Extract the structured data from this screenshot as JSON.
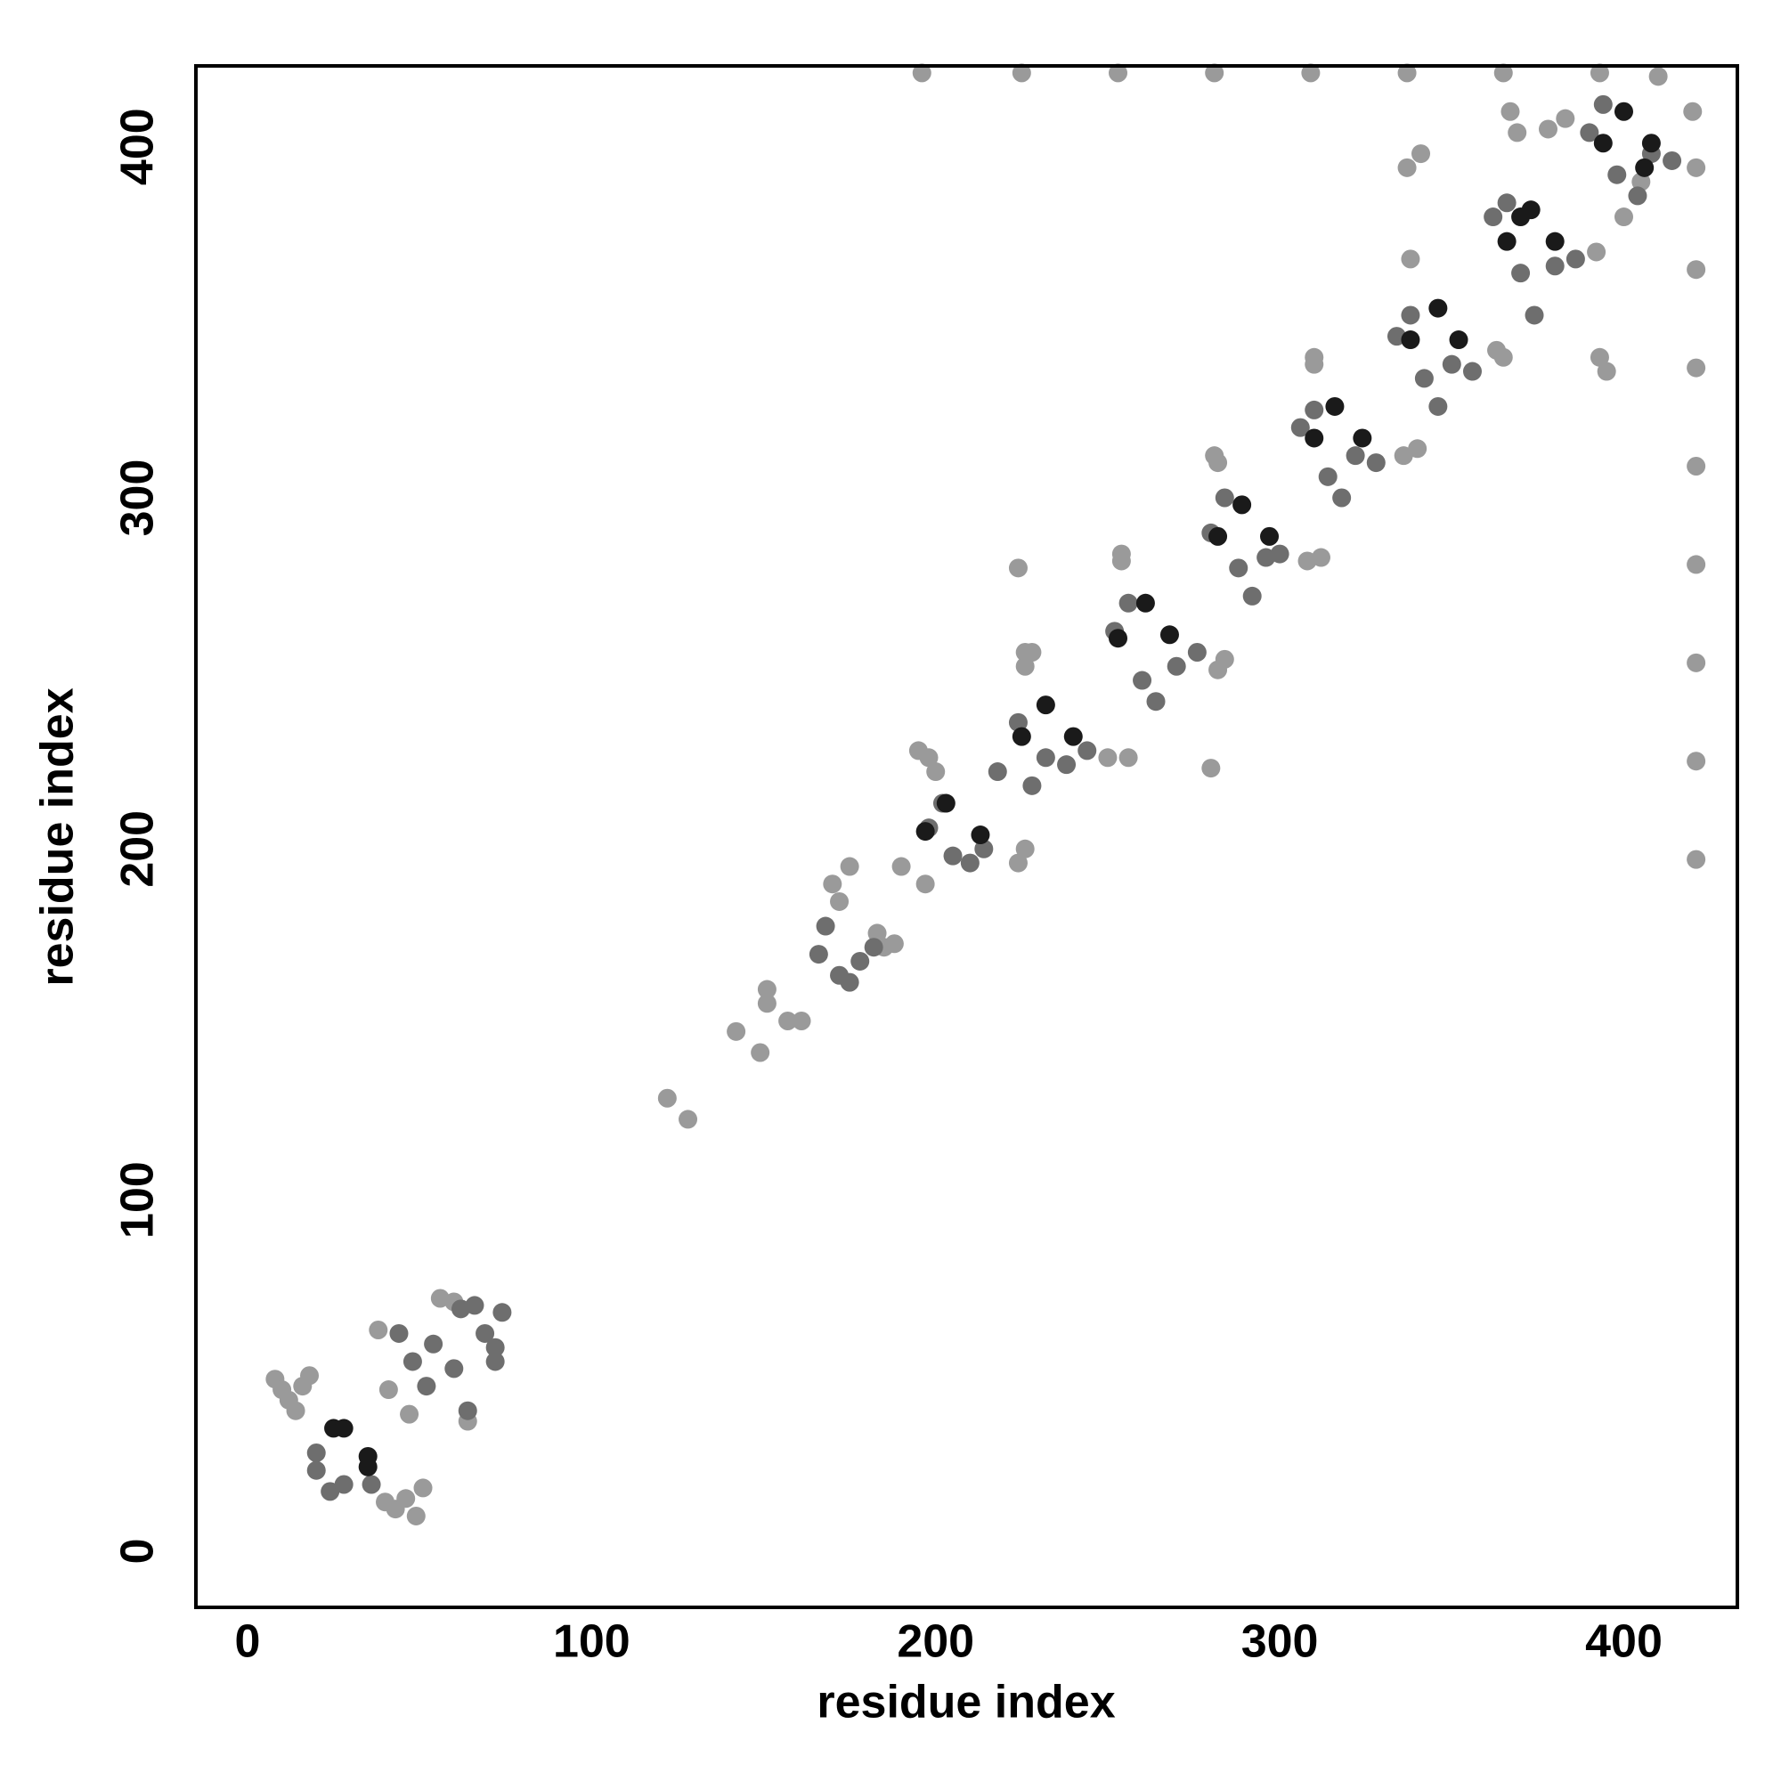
{
  "chart_data": {
    "type": "scatter",
    "x_label": "residue index",
    "y_label": "residue index",
    "xlim": [
      -15,
      433
    ],
    "ylim": [
      -16,
      423
    ],
    "xticks": [
      0,
      100,
      200,
      300,
      400
    ],
    "yticks": [
      0,
      100,
      200,
      300,
      400
    ],
    "grid": false,
    "series": [
      {
        "color": "#9a9a9a",
        "x": [
          196,
          225,
          253,
          281,
          309,
          337,
          365,
          393,
          410,
          421,
          421,
          421,
          421,
          421,
          421,
          421,
          421,
          420,
          122,
          128,
          142,
          149,
          151,
          151,
          157,
          161,
          8,
          10,
          12,
          14,
          16,
          18,
          40,
          43,
          46,
          49,
          51,
          38,
          56,
          60,
          64,
          41,
          47,
          190,
          195,
          197,
          200,
          224,
          226,
          224,
          226,
          228,
          250,
          254,
          256,
          280,
          281,
          282,
          284,
          308,
          310,
          312,
          336,
          338,
          340,
          365,
          363,
          337,
          341,
          393,
          395,
          367,
          369,
          310,
          282,
          254,
          226,
          198,
          170,
          175,
          172,
          188,
          183,
          185,
          392,
          400,
          405,
          378,
          383
        ],
        "y": [
          421,
          421,
          421,
          421,
          421,
          421,
          421,
          421,
          420,
          394,
          365,
          337,
          309,
          281,
          253,
          225,
          197,
          410,
          129,
          123,
          148,
          142,
          160,
          156,
          151,
          151,
          49,
          46,
          43,
          40,
          47,
          50,
          14,
          12,
          15,
          10,
          18,
          63,
          72,
          71,
          37,
          46,
          39,
          195,
          228,
          190,
          222,
          196,
          200,
          280,
          252,
          256,
          226,
          282,
          226,
          223,
          312,
          251,
          254,
          282,
          338,
          283,
          312,
          368,
          314,
          340,
          342,
          394,
          398,
          340,
          336,
          410,
          404,
          340,
          310,
          284,
          256,
          226,
          190,
          195,
          185,
          173,
          176,
          172,
          370,
          380,
          390,
          405,
          408
        ]
      },
      {
        "color": "#6e6e6e",
        "x": [
          20,
          24,
          28,
          20,
          36,
          52,
          48,
          54,
          60,
          64,
          62,
          66,
          69,
          72,
          72,
          74,
          44,
          166,
          168,
          172,
          175,
          178,
          182,
          198,
          202,
          205,
          210,
          214,
          218,
          224,
          228,
          232,
          238,
          244,
          252,
          256,
          260,
          264,
          270,
          276,
          280,
          284,
          288,
          292,
          296,
          300,
          306,
          310,
          314,
          318,
          322,
          328,
          334,
          338,
          342,
          346,
          350,
          356,
          362,
          366,
          370,
          374,
          380,
          386,
          390,
          394,
          398,
          404,
          408,
          414
        ],
        "y": [
          23,
          17,
          19,
          28,
          19,
          47,
          54,
          59,
          52,
          40,
          69,
          70,
          62,
          58,
          54,
          68,
          62,
          170,
          178,
          164,
          162,
          168,
          172,
          206,
          213,
          198,
          196,
          200,
          222,
          236,
          218,
          226,
          224,
          228,
          262,
          270,
          248,
          242,
          252,
          256,
          290,
          300,
          280,
          272,
          283,
          284,
          320,
          325,
          306,
          300,
          312,
          310,
          346,
          352,
          334,
          326,
          338,
          336,
          380,
          384,
          364,
          352,
          366,
          368,
          404,
          412,
          392,
          386,
          398,
          396
        ]
      },
      {
        "color": "#1a1a1a",
        "x": [
          25,
          28,
          35,
          35,
          197,
          203,
          213,
          225,
          232,
          240,
          253,
          261,
          268,
          282,
          289,
          297,
          310,
          316,
          324,
          338,
          346,
          352,
          366,
          373,
          380,
          394,
          400,
          408,
          406,
          370
        ],
        "y": [
          35,
          35,
          27,
          24,
          205,
          213,
          204,
          232,
          241,
          232,
          260,
          270,
          261,
          289,
          298,
          289,
          317,
          326,
          317,
          345,
          354,
          345,
          373,
          382,
          373,
          401,
          410,
          401,
          394,
          380
        ]
      }
    ]
  }
}
